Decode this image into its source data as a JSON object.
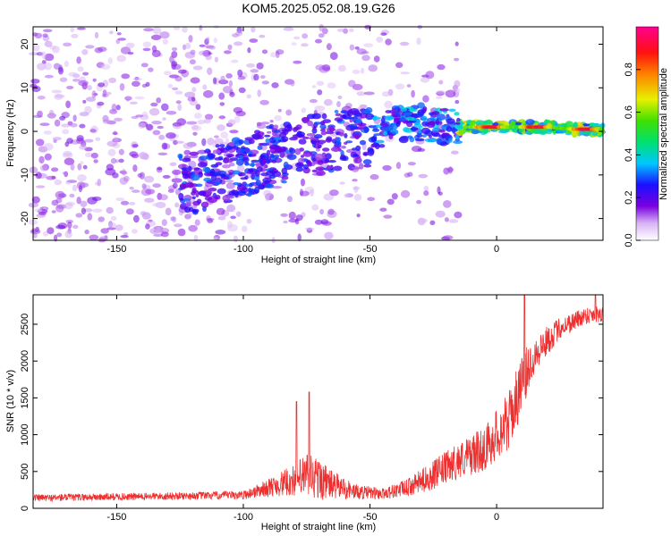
{
  "title": "KOM5.2025.052.08.19.G26",
  "chart_data": [
    {
      "type": "heatmap",
      "xlabel": "Height of straight line (km)",
      "ylabel": "Frequency (Hz)",
      "xlim": [
        -183,
        42
      ],
      "ylim": [
        -25,
        24
      ],
      "xticks": [
        "-150",
        "-100",
        "-50",
        "0"
      ],
      "yticks": [
        "20",
        "10",
        "0",
        "-10",
        "-20"
      ],
      "colorbar": {
        "label": "Normalized spectral amplitude",
        "range": [
          0,
          1
        ],
        "ticks": [
          "0.0",
          "0.2",
          "0.4",
          "0.6",
          "0.8"
        ],
        "colormap": "rainbow (white-violet-blue-cyan-green-yellow-red-magenta)"
      },
      "ridge": [
        {
          "x": -120,
          "y": -12
        },
        {
          "x": -100,
          "y": -8
        },
        {
          "x": -90,
          "y": -6
        },
        {
          "x": -80,
          "y": -4
        },
        {
          "x": -70,
          "y": -3
        },
        {
          "x": -60,
          "y": -2
        },
        {
          "x": -50,
          "y": -1
        },
        {
          "x": -40,
          "y": 2
        },
        {
          "x": -30,
          "y": 2
        },
        {
          "x": -20,
          "y": 1
        },
        {
          "x": -10,
          "y": 1
        },
        {
          "x": 0,
          "y": 1
        },
        {
          "x": 10,
          "y": 1
        },
        {
          "x": 20,
          "y": 1
        },
        {
          "x": 30,
          "y": 0.5
        },
        {
          "x": 40,
          "y": 0.5
        }
      ]
    },
    {
      "type": "line",
      "xlabel": "Height of straight line (km)",
      "ylabel": "SNR (10 * v/v)",
      "xlim": [
        -183,
        42
      ],
      "ylim": [
        0,
        2900
      ],
      "xticks": [
        "-150",
        "-100",
        "-50",
        "0"
      ],
      "yticks": [
        "0",
        "500",
        "1000",
        "1500",
        "2000",
        "2500"
      ],
      "series": [
        {
          "color": "#ee3030",
          "envelope": [
            {
              "x": -183,
              "mean": 140,
              "spread": 50
            },
            {
              "x": -120,
              "mean": 170,
              "spread": 50
            },
            {
              "x": -100,
              "mean": 180,
              "spread": 60
            },
            {
              "x": -90,
              "mean": 280,
              "spread": 120
            },
            {
              "x": -80,
              "mean": 380,
              "spread": 220
            },
            {
              "x": -74,
              "mean": 450,
              "spread": 350
            },
            {
              "x": -65,
              "mean": 320,
              "spread": 200
            },
            {
              "x": -55,
              "mean": 220,
              "spread": 100
            },
            {
              "x": -45,
              "mean": 200,
              "spread": 80
            },
            {
              "x": -35,
              "mean": 280,
              "spread": 120
            },
            {
              "x": -25,
              "mean": 450,
              "spread": 200
            },
            {
              "x": -15,
              "mean": 650,
              "spread": 250
            },
            {
              "x": -5,
              "mean": 800,
              "spread": 300
            },
            {
              "x": 5,
              "mean": 1200,
              "spread": 400
            },
            {
              "x": 10,
              "mean": 1700,
              "spread": 400
            },
            {
              "x": 15,
              "mean": 2100,
              "spread": 250
            },
            {
              "x": 25,
              "mean": 2450,
              "spread": 150
            },
            {
              "x": 35,
              "mean": 2620,
              "spread": 120
            },
            {
              "x": 42,
              "mean": 2650,
              "spread": 120
            }
          ],
          "peaks": [
            {
              "x": -74,
              "y": 1580
            },
            {
              "x": -79,
              "y": 1450
            },
            {
              "x": 11,
              "y": 2900
            },
            {
              "x": 39,
              "y": 2900
            }
          ]
        }
      ]
    }
  ]
}
